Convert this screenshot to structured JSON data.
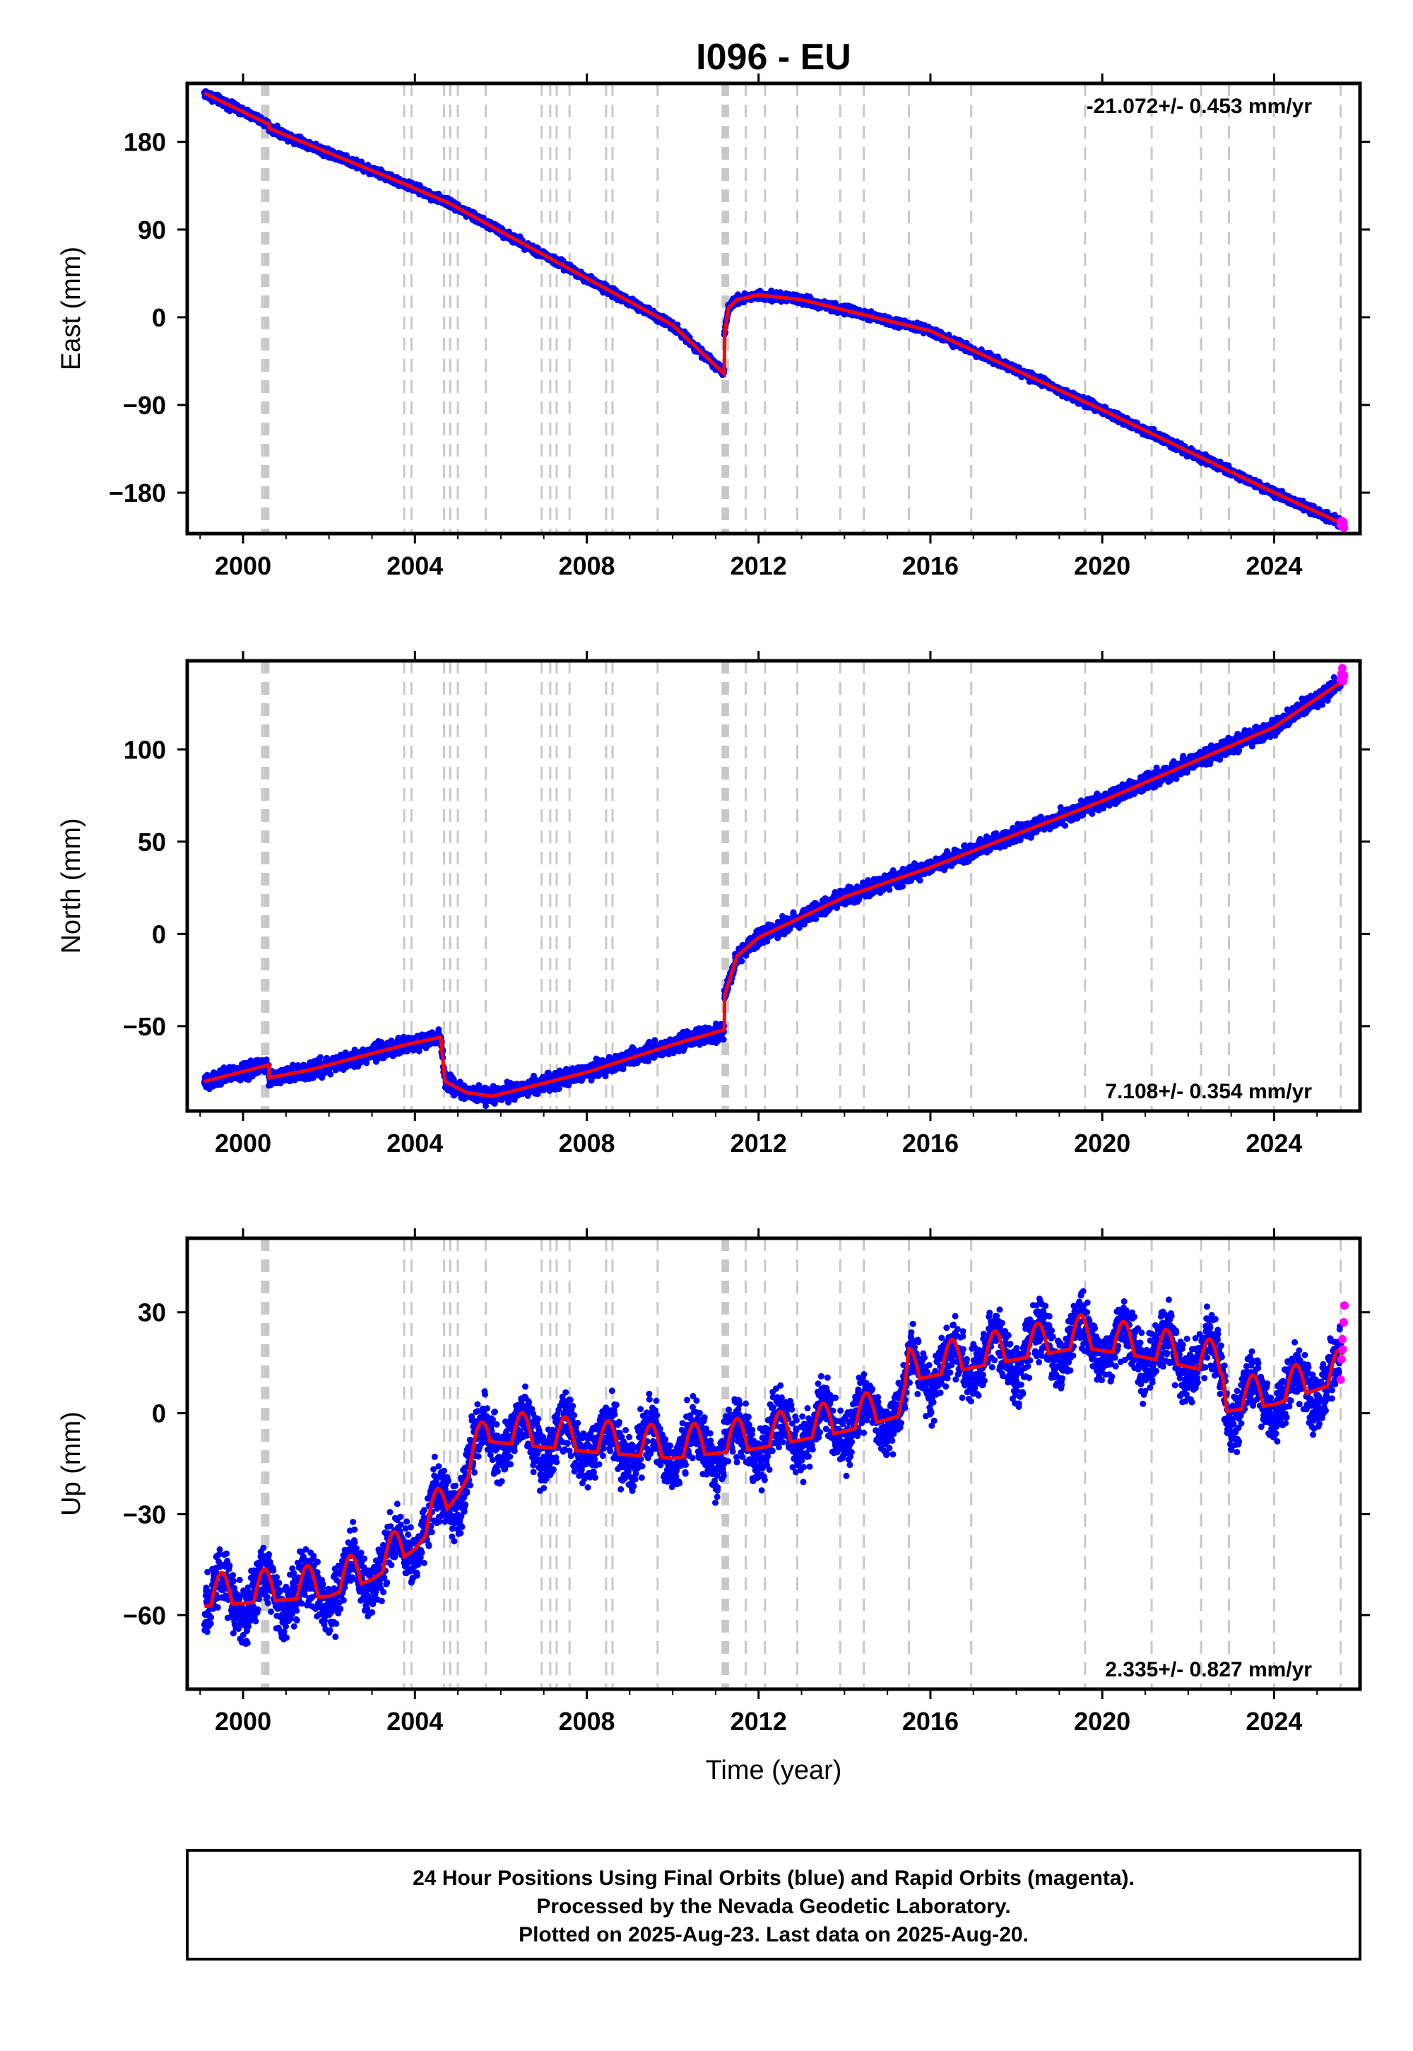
{
  "title": "I096 - EU",
  "x_axis_label": "Time (year)",
  "footer": {
    "line1": "24 Hour Positions Using Final Orbits (blue) and Rapid Orbits (magenta).",
    "line2": "Processed by the Nevada Geodetic Laboratory.",
    "line3": "Plotted on 2025-Aug-23. Last data on 2025-Aug-20."
  },
  "colors": {
    "final_orbits": "#0000ff",
    "rapid_orbits": "#ff00ff",
    "model_fit": "#ff0000",
    "event_lines": "#c8c8c8",
    "frame": "#000000"
  },
  "chart_data": [
    {
      "type": "scatter",
      "name": "east",
      "ylabel": "East (mm)",
      "rate_label": "-21.072+/- 0.453 mm/yr",
      "rate_position": "top-right",
      "xlim": [
        1998.7,
        2026.0
      ],
      "ylim": [
        -222,
        240
      ],
      "xticks": [
        2000,
        2004,
        2008,
        2012,
        2016,
        2020,
        2024
      ],
      "yticks": [
        180,
        90,
        0,
        -90,
        -180
      ],
      "ytick_labels": [
        "180",
        "90",
        "0",
        "−90",
        "−180"
      ],
      "noise": 3,
      "fit": {
        "x": [
          1999.1,
          2000.6,
          2000.6,
          2003.8,
          2004.8,
          2006.0,
          2008.0,
          2010.0,
          2011.2,
          2011.2,
          2011.3,
          2011.5,
          2012.0,
          2013.0,
          2016.0,
          2020.0,
          2024.0,
          2025.6
        ],
        "y": [
          230,
          198,
          194,
          136,
          117,
          88,
          40,
          -8,
          -58,
          -20,
          10,
          18,
          23,
          18,
          -14,
          -95,
          -180,
          -212
        ]
      },
      "rapid": {
        "x": [
          2025.55,
          2025.57,
          2025.59,
          2025.61,
          2025.63
        ],
        "y": [
          -213,
          -209,
          -214,
          -210,
          -216
        ]
      }
    },
    {
      "type": "scatter",
      "name": "north",
      "ylabel": "North (mm)",
      "rate_label": "7.108+/- 0.354 mm/yr",
      "rate_position": "bottom-right",
      "xlim": [
        1998.7,
        2026.0
      ],
      "ylim": [
        -96,
        148
      ],
      "xticks": [
        2000,
        2004,
        2008,
        2012,
        2016,
        2020,
        2024
      ],
      "yticks": [
        100,
        50,
        0,
        -50
      ],
      "ytick_labels": [
        "100",
        "50",
        "0",
        "−50"
      ],
      "noise": 3,
      "fit": {
        "x": [
          1999.1,
          2000.6,
          2000.6,
          2001.5,
          2003.8,
          2004.6,
          2004.7,
          2005.2,
          2005.8,
          2008.0,
          2010.0,
          2011.2,
          2011.2,
          2011.5,
          2012.0,
          2014.0,
          2016.0,
          2020.0,
          2024.0,
          2025.6
        ],
        "y": [
          -80,
          -71,
          -78,
          -74,
          -60,
          -56,
          -80,
          -86,
          -88,
          -75,
          -60,
          -52,
          -34,
          -12,
          -2,
          20,
          36,
          72,
          112,
          137
        ]
      },
      "rapid": {
        "x": [
          2025.55,
          2025.57,
          2025.59,
          2025.61,
          2025.63
        ],
        "y": [
          138,
          141,
          144,
          137,
          140
        ]
      }
    },
    {
      "type": "scatter",
      "name": "up",
      "ylabel": "Up (mm)",
      "rate_label": "2.335+/- 0.827 mm/yr",
      "rate_position": "bottom-right",
      "xlim": [
        1998.7,
        2026.0
      ],
      "ylim": [
        -82,
        52
      ],
      "xticks": [
        2000,
        2004,
        2008,
        2012,
        2016,
        2020,
        2024
      ],
      "yticks": [
        30,
        0,
        -30,
        -60
      ],
      "ytick_labels": [
        "30",
        "0",
        "−30",
        "−60"
      ],
      "noise": 6,
      "seasonal_amplitude": 6,
      "fit": {
        "x": [
          1999.1,
          2002.0,
          2003.0,
          2004.0,
          2005.0,
          2005.7,
          2008.0,
          2010.0,
          2012.0,
          2014.0,
          2015.4,
          2015.5,
          2017.0,
          2019.5,
          2021.0,
          2022.8,
          2022.9,
          2024.0,
          2025.6
        ],
        "y": [
          -55,
          -52,
          -47,
          -38,
          -22,
          -6,
          -9,
          -11,
          -8,
          -3,
          2,
          12,
          16,
          22,
          19,
          14,
          3,
          5,
          12
        ]
      },
      "rapid": {
        "x": [
          2025.55,
          2025.57,
          2025.59,
          2025.6,
          2025.62,
          2025.64
        ],
        "y": [
          10,
          16,
          22,
          19,
          27,
          32
        ]
      }
    }
  ],
  "event_lines": [
    {
      "t": 2000.45,
      "style": "heavy"
    },
    {
      "t": 2000.52,
      "style": "heavy"
    },
    {
      "t": 2000.58,
      "style": "heavy"
    },
    {
      "t": 2003.75
    },
    {
      "t": 2003.92
    },
    {
      "t": 2004.68
    },
    {
      "t": 2004.82
    },
    {
      "t": 2005.0
    },
    {
      "t": 2005.65
    },
    {
      "t": 2006.95
    },
    {
      "t": 2007.15
    },
    {
      "t": 2007.3
    },
    {
      "t": 2007.6
    },
    {
      "t": 2008.45
    },
    {
      "t": 2008.6
    },
    {
      "t": 2009.65
    },
    {
      "t": 2011.17,
      "style": "heavy"
    },
    {
      "t": 2011.22,
      "style": "heavy"
    },
    {
      "t": 2011.28,
      "style": "heavy"
    },
    {
      "t": 2011.7
    },
    {
      "t": 2012.15
    },
    {
      "t": 2012.9
    },
    {
      "t": 2013.9
    },
    {
      "t": 2014.45
    },
    {
      "t": 2015.5
    },
    {
      "t": 2016.95
    },
    {
      "t": 2019.6
    },
    {
      "t": 2021.15
    },
    {
      "t": 2022.3
    },
    {
      "t": 2022.95
    },
    {
      "t": 2024.0
    },
    {
      "t": 2025.55
    }
  ]
}
